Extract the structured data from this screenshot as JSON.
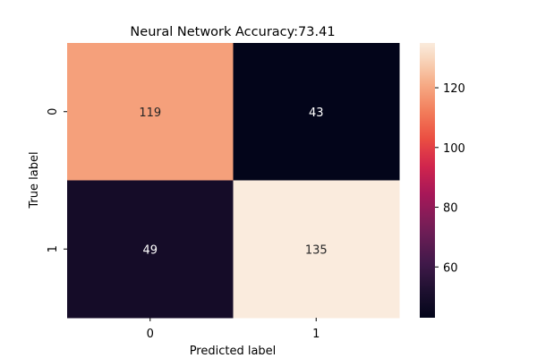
{
  "chart_data": {
    "type": "heatmap",
    "title": "Neural Network Accuracy:73.41",
    "xlabel": "Predicted label",
    "ylabel": "True label",
    "x_categories": [
      "0",
      "1"
    ],
    "y_categories": [
      "0",
      "1"
    ],
    "values": [
      [
        119,
        43
      ],
      [
        49,
        135
      ]
    ],
    "annotations": [
      [
        "119",
        "43"
      ],
      [
        "49",
        "135"
      ]
    ],
    "colorbar": {
      "range": [
        43,
        135
      ],
      "ticks": [
        60,
        80,
        100,
        120
      ],
      "tick_labels": [
        "60",
        "80",
        "100",
        "120"
      ],
      "colormap": "rocket"
    },
    "grid": false
  }
}
